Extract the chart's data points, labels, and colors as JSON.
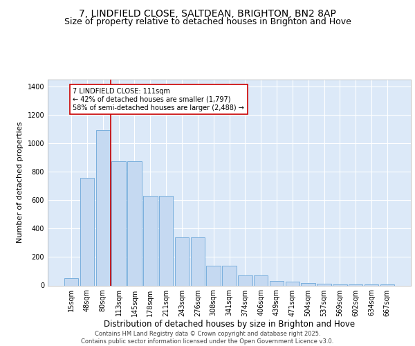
{
  "title_line1": "7, LINDFIELD CLOSE, SALTDEAN, BRIGHTON, BN2 8AP",
  "title_line2": "Size of property relative to detached houses in Brighton and Hove",
  "xlabel": "Distribution of detached houses by size in Brighton and Hove",
  "ylabel": "Number of detached properties",
  "categories": [
    "15sqm",
    "48sqm",
    "80sqm",
    "113sqm",
    "145sqm",
    "178sqm",
    "211sqm",
    "243sqm",
    "276sqm",
    "308sqm",
    "341sqm",
    "374sqm",
    "406sqm",
    "439sqm",
    "471sqm",
    "504sqm",
    "537sqm",
    "569sqm",
    "602sqm",
    "634sqm",
    "667sqm"
  ],
  "values": [
    50,
    760,
    1095,
    875,
    875,
    630,
    630,
    340,
    340,
    140,
    140,
    70,
    70,
    30,
    28,
    18,
    14,
    8,
    8,
    5,
    8
  ],
  "bar_color": "#c5d9f1",
  "bar_edge_color": "#7aafdd",
  "vline_color": "#cc0000",
  "vline_pos": 2.5,
  "annotation_text": "7 LINDFIELD CLOSE: 111sqm\n← 42% of detached houses are smaller (1,797)\n58% of semi-detached houses are larger (2,488) →",
  "annotation_box_color": "#ffffff",
  "annotation_box_edge": "#cc0000",
  "background_color": "#dce9f8",
  "grid_color": "#ffffff",
  "ylim": [
    0,
    1450
  ],
  "yticks": [
    0,
    200,
    400,
    600,
    800,
    1000,
    1200,
    1400
  ],
  "footer": "Contains HM Land Registry data © Crown copyright and database right 2025.\nContains public sector information licensed under the Open Government Licence v3.0.",
  "title_fontsize": 10,
  "subtitle_fontsize": 9,
  "tick_fontsize": 7,
  "xlabel_fontsize": 8.5,
  "ylabel_fontsize": 8,
  "annotation_fontsize": 7,
  "footer_fontsize": 6
}
